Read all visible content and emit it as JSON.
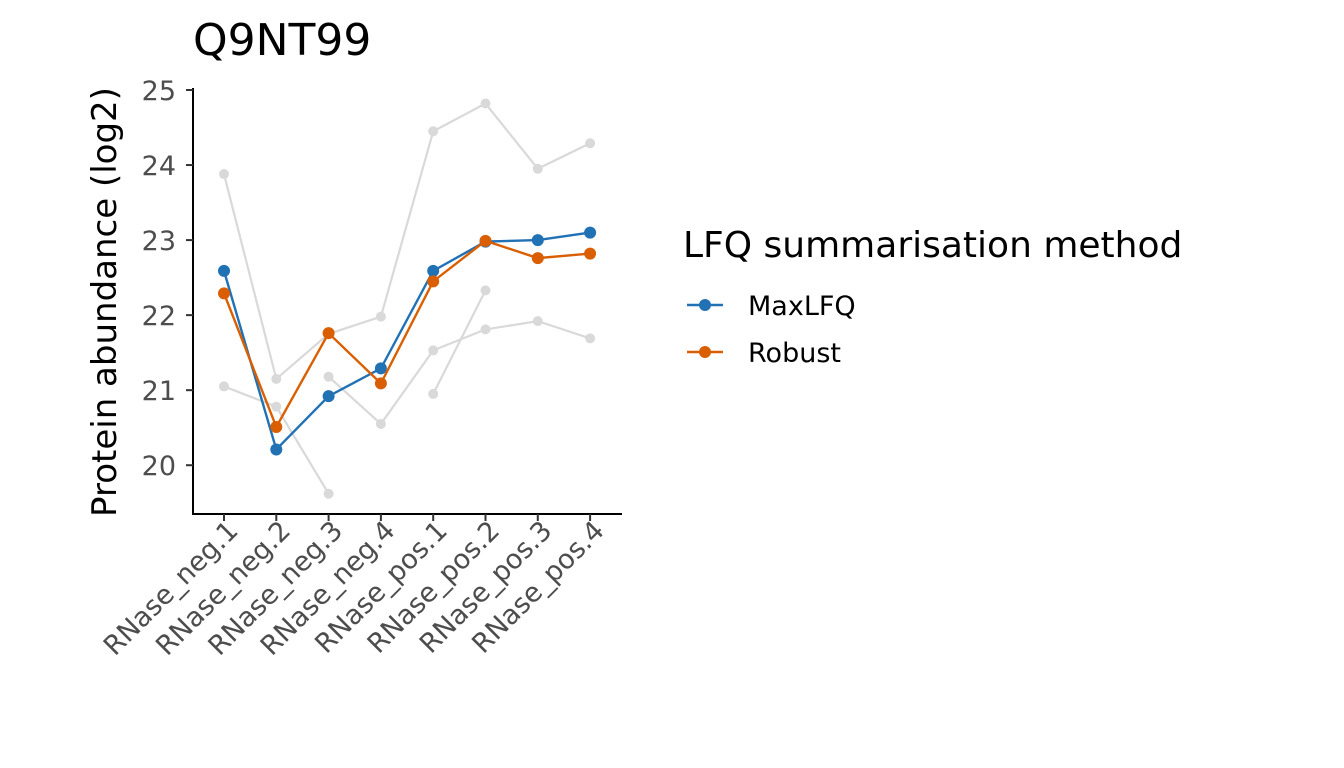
{
  "chart_data": {
    "type": "line",
    "title": "Q9NT99",
    "xlabel": "",
    "ylabel": "Protein abundance (log2)",
    "categories": [
      "RNase_neg.1",
      "RNase_neg.2",
      "RNase_neg.3",
      "RNase_neg.4",
      "RNase_pos.1",
      "RNase_pos.2",
      "RNase_pos.3",
      "RNase_pos.4"
    ],
    "y_ticks": [
      20,
      21,
      22,
      23,
      24,
      25
    ],
    "ylim": [
      19.35,
      25.0
    ],
    "grid": false,
    "legend": {
      "title": "LFQ summarisation method",
      "placement": "right"
    },
    "background_series": [
      {
        "values": [
          23.88,
          21.15,
          21.75,
          21.98,
          24.45,
          24.82,
          23.95,
          24.29
        ],
        "color": "#d9d9d9"
      },
      {
        "values": [
          21.05,
          20.78,
          19.62,
          null,
          20.95,
          22.33,
          null,
          null
        ],
        "color": "#d9d9d9"
      },
      {
        "values": [
          null,
          null,
          21.18,
          20.55,
          21.53,
          21.81,
          21.92,
          21.69
        ],
        "color": "#d9d9d9"
      }
    ],
    "series": [
      {
        "name": "MaxLFQ",
        "color": "#2171b5",
        "values": [
          22.59,
          20.21,
          20.92,
          21.29,
          22.59,
          22.98,
          23.0,
          23.1
        ]
      },
      {
        "name": "Robust",
        "color": "#d95f02",
        "values": [
          22.29,
          20.51,
          21.76,
          21.09,
          22.45,
          22.99,
          22.76,
          22.82
        ]
      }
    ]
  }
}
